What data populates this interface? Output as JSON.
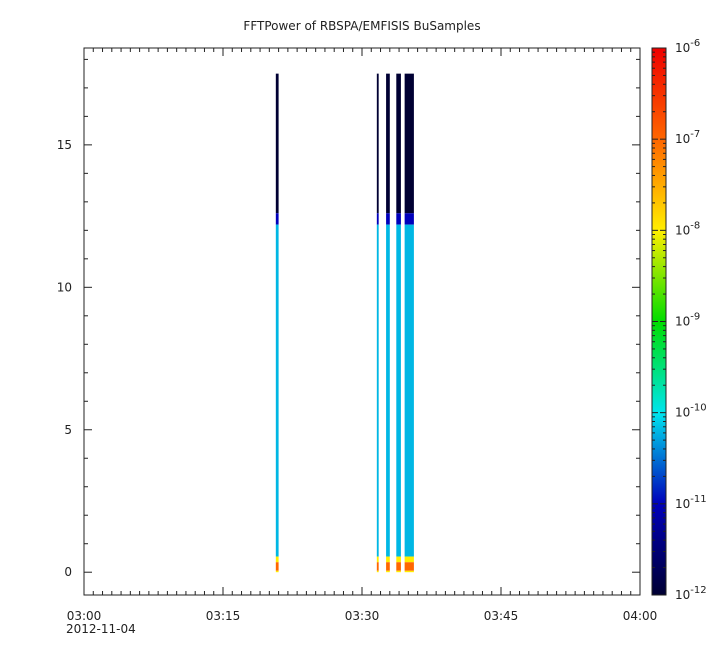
{
  "chart_data": {
    "type": "heatmap",
    "title": "FFTPower of RBSPA/EMFISIS  BuSamples",
    "xlabel": "",
    "ylabel": "",
    "x_axis": {
      "range_minutes": [
        0,
        60
      ],
      "ticks": [
        {
          "minute": 0,
          "label": "03:00"
        },
        {
          "minute": 15,
          "label": "03:15"
        },
        {
          "minute": 30,
          "label": "03:30"
        },
        {
          "minute": 45,
          "label": "03:45"
        },
        {
          "minute": 60,
          "label": "04:00"
        }
      ],
      "date_label": "2012-11-04"
    },
    "y_axis": {
      "range": [
        -0.8,
        18.4
      ],
      "ticks": [
        0,
        5,
        10,
        15
      ],
      "tick_labels": [
        "0",
        "5",
        "10",
        "15"
      ]
    },
    "colorbar": {
      "scale": "log",
      "range_exponent": [
        -12,
        -6
      ],
      "tick_exponents": [
        -12,
        -11,
        -10,
        -9,
        -8,
        -7,
        -6
      ],
      "tick_base": "10",
      "colors": [
        "#000033",
        "#0000bb",
        "#00e5ee",
        "#00dd00",
        "#ffee00",
        "#ff6600",
        "#ee0000"
      ]
    },
    "spectrogram_bands": [
      {
        "y0": 17.5,
        "y1": 12.6,
        "exponent": -12
      },
      {
        "y0": 12.6,
        "y1": 12.2,
        "exponent": -11
      },
      {
        "y0": 12.2,
        "y1": 0.55,
        "exponent": -10.2
      },
      {
        "y0": 0.55,
        "y1": 0.35,
        "exponent": -8.0
      },
      {
        "y0": 0.35,
        "y1": 0.05,
        "exponent": -7.0
      },
      {
        "y0": 0.05,
        "y1": 0.0,
        "exponent": -8.0
      }
    ],
    "columns": [
      {
        "t0": 20.7,
        "t1": 21.0
      },
      {
        "t0": 31.6,
        "t1": 31.8
      },
      {
        "t0": 32.6,
        "t1": 33.0
      },
      {
        "t0": 33.7,
        "t1": 34.2
      },
      {
        "t0": 34.6,
        "t1": 35.6
      }
    ]
  }
}
